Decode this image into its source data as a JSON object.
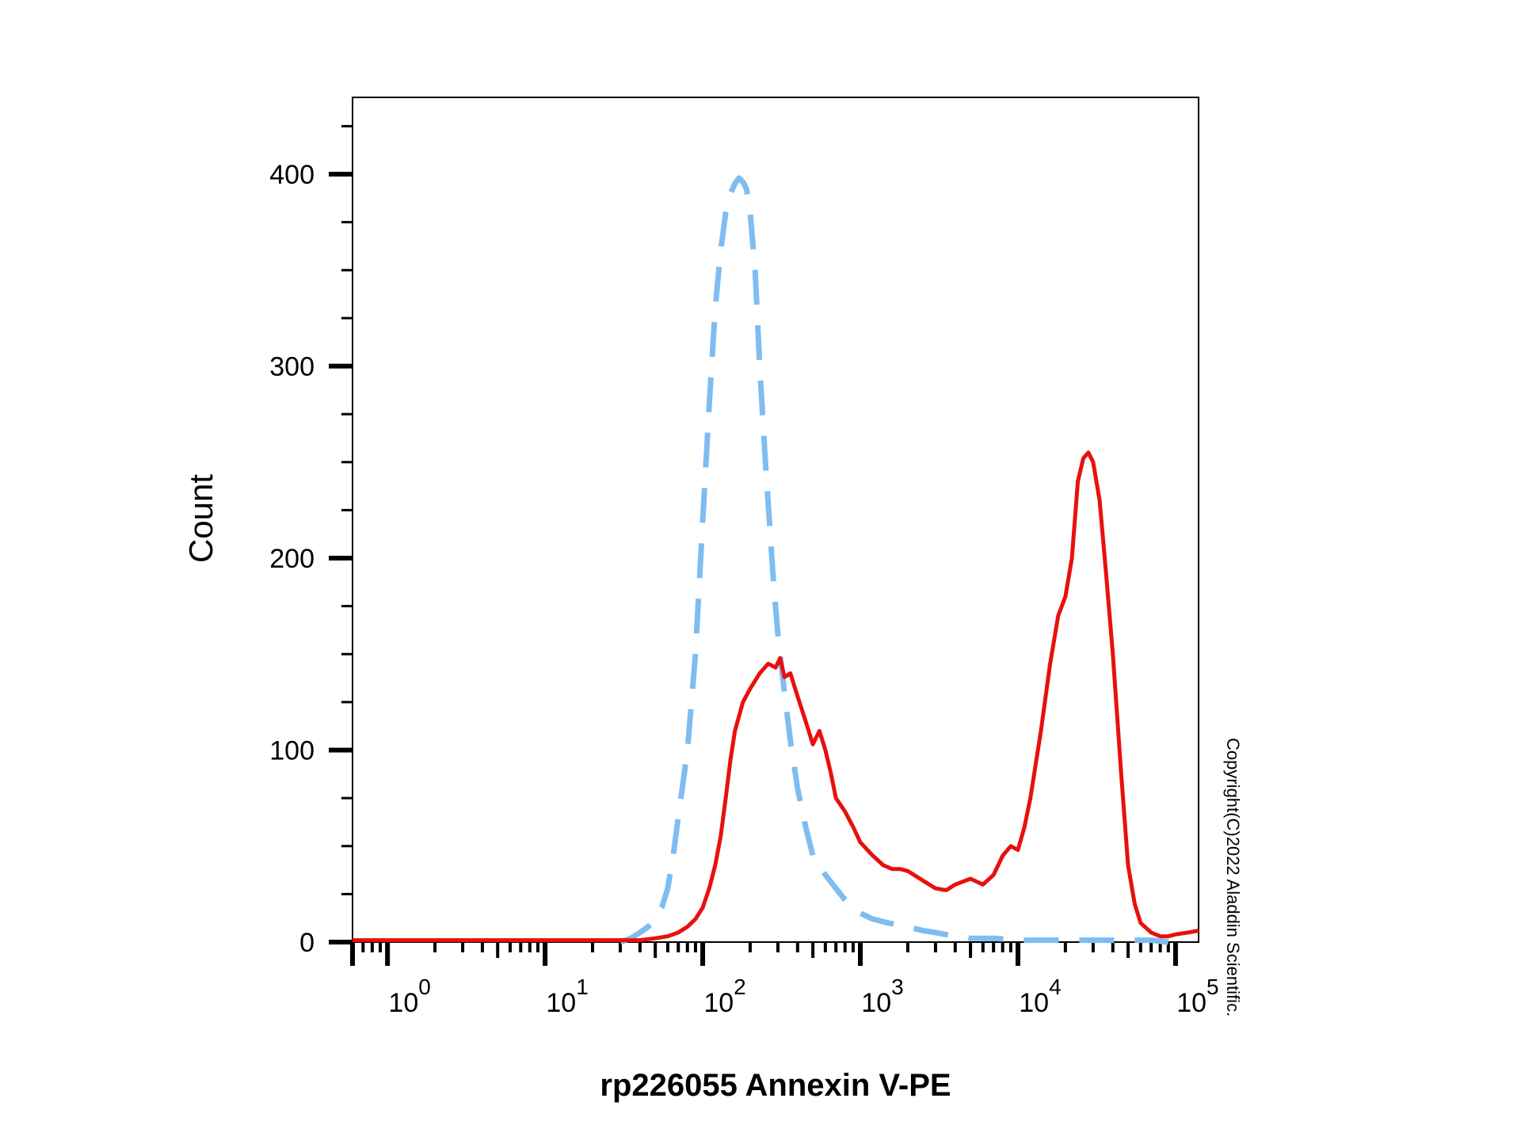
{
  "chart_data": {
    "type": "line",
    "title": "",
    "xlabel": "rp226055 Annexin V-PE",
    "ylabel": "Count",
    "x_scale": "log",
    "xlim": [
      0.6,
      140000
    ],
    "ylim": [
      0,
      440
    ],
    "x_ticks": [
      {
        "base": "10",
        "exp": "0",
        "value": 1
      },
      {
        "base": "10",
        "exp": "1",
        "value": 10
      },
      {
        "base": "10",
        "exp": "2",
        "value": 100
      },
      {
        "base": "10",
        "exp": "3",
        "value": 1000
      },
      {
        "base": "10",
        "exp": "4",
        "value": 10000
      },
      {
        "base": "10",
        "exp": "5",
        "value": 100000
      }
    ],
    "y_ticks": [
      0,
      100,
      200,
      300,
      400
    ],
    "grid": false,
    "legend": "none",
    "series": [
      {
        "color": "#e8100e",
        "style": "solid",
        "x": [
          0.6,
          1,
          10,
          30,
          40,
          50,
          60,
          70,
          80,
          90,
          100,
          110,
          120,
          130,
          140,
          150,
          160,
          180,
          200,
          230,
          260,
          290,
          310,
          330,
          360,
          400,
          450,
          500,
          550,
          600,
          650,
          700,
          800,
          900,
          1000,
          1200,
          1400,
          1600,
          1800,
          2000,
          2500,
          3000,
          3500,
          4000,
          5000,
          6000,
          7000,
          8000,
          9000,
          10000,
          11000,
          12000,
          14000,
          16000,
          18000,
          20000,
          22000,
          24000,
          26000,
          28000,
          30000,
          33000,
          36000,
          40000,
          45000,
          50000,
          55000,
          60000,
          70000,
          80000,
          90000,
          100000,
          120000,
          140000
        ],
        "y": [
          1,
          1,
          1,
          1,
          1,
          2,
          3,
          5,
          8,
          12,
          18,
          28,
          40,
          55,
          75,
          95,
          110,
          125,
          132,
          140,
          145,
          143,
          148,
          138,
          140,
          128,
          115,
          103,
          110,
          100,
          88,
          75,
          68,
          60,
          52,
          45,
          40,
          38,
          38,
          37,
          32,
          28,
          27,
          30,
          33,
          30,
          35,
          45,
          50,
          48,
          60,
          75,
          110,
          145,
          170,
          180,
          200,
          240,
          252,
          255,
          250,
          230,
          195,
          150,
          90,
          40,
          20,
          10,
          5,
          3,
          3,
          4,
          5,
          6
        ]
      },
      {
        "color": "#7fbcf0",
        "style": "dashed",
        "x": [
          30,
          35,
          40,
          45,
          50,
          55,
          60,
          65,
          70,
          80,
          90,
          100,
          110,
          120,
          130,
          140,
          150,
          160,
          170,
          180,
          190,
          200,
          215,
          230,
          250,
          280,
          300,
          330,
          360,
          400,
          450,
          500,
          600,
          700,
          800,
          1000,
          1200,
          1500,
          2000,
          2500,
          3000,
          4000,
          5000,
          7000,
          10000,
          20000,
          30000,
          50000,
          70000,
          90000
        ],
        "y": [
          0,
          2,
          5,
          8,
          12,
          18,
          28,
          45,
          65,
          100,
          150,
          220,
          280,
          330,
          360,
          380,
          390,
          395,
          398,
          396,
          392,
          380,
          350,
          300,
          250,
          190,
          160,
          130,
          105,
          80,
          60,
          45,
          35,
          28,
          22,
          15,
          12,
          10,
          8,
          6,
          5,
          3,
          2,
          2,
          1,
          1,
          1,
          1,
          1,
          0
        ]
      }
    ]
  },
  "watermark": "Copyright(C)2022 Aladdin Scientific.",
  "colors": {
    "axis": "#000000",
    "stained": "#e8100e",
    "control": "#7fbcf0"
  }
}
